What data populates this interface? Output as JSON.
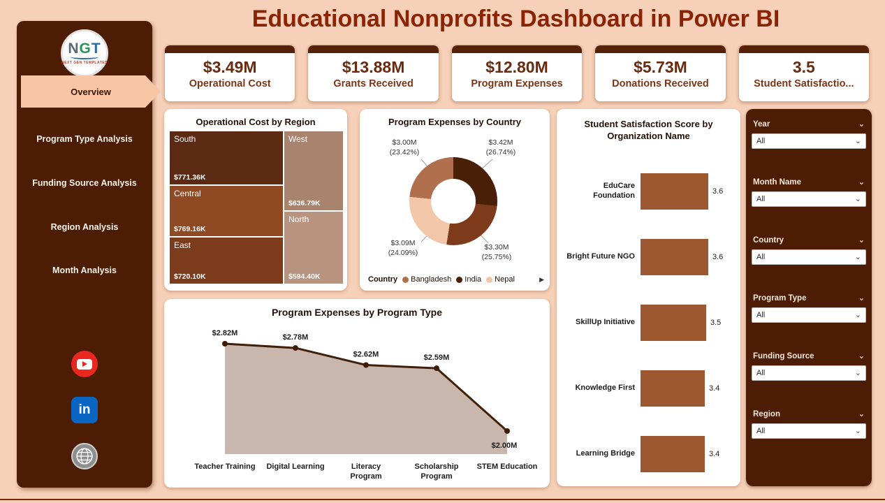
{
  "colors": {
    "page_bg": "#f6d0b8",
    "panel_bg": "#4c1c04",
    "title_color": "#8b2404",
    "kpi_bar": "#552108"
  },
  "header": {
    "title": "Educational Nonprofits Dashboard in Power BI"
  },
  "sidebar": {
    "logo": {
      "letters": [
        "N",
        "G",
        "T"
      ],
      "subtitle": "NEXT GEN TEMPLATES"
    },
    "items": [
      "Overview",
      "Program Type Analysis",
      "Funding Source Analysis",
      "Region Analysis",
      "Month Analysis"
    ],
    "social": [
      "youtube",
      "linkedin",
      "website"
    ]
  },
  "kpis": [
    {
      "value": "$3.49M",
      "label": "Operational Cost"
    },
    {
      "value": "$13.88M",
      "label": "Grants Received"
    },
    {
      "value": "$12.80M",
      "label": "Program Expenses"
    },
    {
      "value": "$5.73M",
      "label": "Donations Received"
    },
    {
      "value": "3.5",
      "label": "Student Satisfactio..."
    }
  ],
  "slicers": [
    {
      "label": "Year",
      "value": "All"
    },
    {
      "label": "Month Name",
      "value": "All"
    },
    {
      "label": "Country",
      "value": "All"
    },
    {
      "label": "Program Type",
      "value": "All"
    },
    {
      "label": "Funding Source",
      "value": "All"
    },
    {
      "label": "Region",
      "value": "All"
    }
  ],
  "chart_data": [
    {
      "type": "treemap",
      "title": "Operational Cost by Region",
      "items": [
        {
          "label": "South",
          "value": "$771.36K",
          "color": "#5c2912"
        },
        {
          "label": "Central",
          "value": "$769.16K",
          "color": "#8f4a24"
        },
        {
          "label": "East",
          "value": "$720.10K",
          "color": "#7c3b1b"
        },
        {
          "label": "West",
          "value": "$636.79K",
          "color": "#a8846f"
        },
        {
          "label": "North",
          "value": "$594.40K",
          "color": "#b8937f"
        }
      ]
    },
    {
      "type": "pie",
      "title": "Program Expenses by Country",
      "donut": true,
      "segments": [
        {
          "amount": "$3.42M",
          "pct": 26.74,
          "pct_label": "(26.74%)",
          "color": "#4a1f08"
        },
        {
          "amount": "$3.30M",
          "pct": 25.75,
          "pct_label": "(25.75%)",
          "color": "#7d3b1c"
        },
        {
          "amount": "$3.09M",
          "pct": 24.09,
          "pct_label": "(24.09%)",
          "color": "#f2c7a9"
        },
        {
          "amount": "$3.00M",
          "pct": 23.42,
          "pct_label": "(23.42%)",
          "color": "#b06f4d"
        }
      ],
      "legend_title": "Country",
      "legend": [
        {
          "label": "Bangladesh",
          "color": "#b06f4d"
        },
        {
          "label": "India",
          "color": "#4a1f08"
        },
        {
          "label": "Nepal",
          "color": "#f2c7a9"
        }
      ]
    },
    {
      "type": "area",
      "title": "Program Expenses by Program Type",
      "categories": [
        "Teacher Training",
        "Digital Learning",
        "Literacy Program",
        "Scholarship Program",
        "STEM Education"
      ],
      "values": [
        2.82,
        2.78,
        2.62,
        2.59,
        2.0
      ],
      "labels": [
        "$2.82M",
        "$2.78M",
        "$2.62M",
        "$2.59M",
        "$2.00M"
      ],
      "line_color": "#41200a",
      "fill_color": "#c9b7ad",
      "dot_color": "#3f1c06"
    },
    {
      "type": "bar",
      "title": "Student Satisfaction Score by Organization Name",
      "categories": [
        "EduCare Foundation",
        "Bright Future NGO",
        "SkillUp Initiative",
        "Knowledge First",
        "Learning Bridge"
      ],
      "values": [
        3.6,
        3.6,
        3.5,
        3.4,
        3.4
      ],
      "bar_color": "#9d5832",
      "xlim": [
        0,
        3.6
      ]
    }
  ]
}
